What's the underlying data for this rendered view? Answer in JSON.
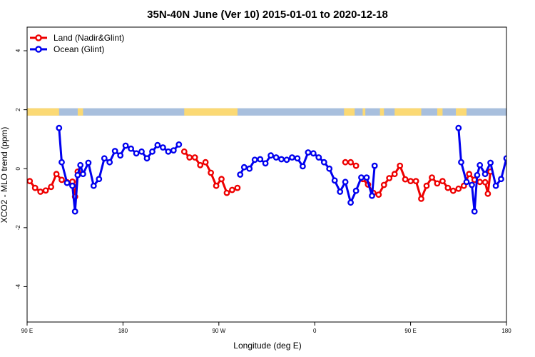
{
  "chart_data": {
    "type": "line",
    "title": "35N-40N June (Ver 10)   2015-01-01 to 2020-12-18",
    "xlabel": "Longitude (deg E)",
    "ylabel": "XCO2 - MLO trend (ppm)",
    "xlim": [
      90,
      450
    ],
    "ylim": [
      -5.2,
      4.8
    ],
    "x_ticks": [
      90,
      162,
      234,
      306,
      378,
      450
    ],
    "x_tick_labels": [
      "90 E",
      "180",
      "90 W",
      "0",
      "90 E",
      "180"
    ],
    "y_ticks": [
      -4,
      -2,
      0,
      2,
      4
    ],
    "y_tick_labels": [
      "-4",
      "-2",
      "0",
      "2",
      "4"
    ],
    "legend_position": "top-left",
    "land_ocean_strip": {
      "y_range": [
        1.8,
        2.05
      ],
      "land_color": "#fbd974",
      "ocean_color": "#a8bfdd",
      "land_segments": [
        [
          90,
          114
        ],
        [
          128,
          132
        ],
        [
          208,
          248
        ],
        [
          328,
          336
        ],
        [
          342,
          344
        ],
        [
          355,
          358
        ],
        [
          366,
          386
        ],
        [
          398,
          402
        ],
        [
          412,
          420
        ]
      ]
    },
    "series": [
      {
        "name": "Land (Nadir&Glint)",
        "color": "#ee0000",
        "segments": [
          [
            [
              92,
              -0.42
            ],
            [
              96,
              -0.65
            ],
            [
              100,
              -0.78
            ],
            [
              104,
              -0.74
            ],
            [
              108,
              -0.62
            ],
            [
              112,
              -0.18
            ],
            [
              116,
              -0.38
            ],
            [
              120,
              -0.46
            ],
            [
              124,
              -0.44
            ],
            [
              126,
              -0.95
            ],
            [
              128,
              -0.1
            ]
          ],
          [
            [
              208,
              0.58
            ],
            [
              212,
              0.38
            ],
            [
              216,
              0.38
            ],
            [
              220,
              0.12
            ],
            [
              224,
              0.22
            ],
            [
              228,
              -0.14
            ],
            [
              232,
              -0.58
            ],
            [
              236,
              -0.35
            ],
            [
              240,
              -0.82
            ],
            [
              244,
              -0.72
            ],
            [
              248,
              -0.65
            ]
          ],
          [
            [
              329,
              0.22
            ],
            [
              333,
              0.22
            ],
            [
              337,
              0.1
            ]
          ],
          [
            [
              342,
              -0.35
            ],
            [
              346,
              -0.54
            ],
            [
              350,
              -0.82
            ],
            [
              354,
              -0.88
            ],
            [
              358,
              -0.55
            ],
            [
              362,
              -0.32
            ],
            [
              366,
              -0.18
            ],
            [
              370,
              0.1
            ],
            [
              374,
              -0.36
            ],
            [
              378,
              -0.42
            ],
            [
              382,
              -0.42
            ],
            [
              386,
              -1.02
            ],
            [
              390,
              -0.58
            ],
            [
              394,
              -0.3
            ],
            [
              398,
              -0.5
            ],
            [
              402,
              -0.42
            ],
            [
              406,
              -0.65
            ],
            [
              410,
              -0.75
            ],
            [
              414,
              -0.68
            ],
            [
              418,
              -0.58
            ],
            [
              422,
              -0.18
            ],
            [
              426,
              -0.38
            ],
            [
              430,
              -0.45
            ],
            [
              434,
              -0.46
            ],
            [
              436,
              -0.85
            ],
            [
              438,
              -0.1
            ]
          ]
        ]
      },
      {
        "name": "Ocean (Glint)",
        "color": "#0000ee",
        "segments": [
          [
            [
              114,
              1.38
            ],
            [
              116,
              0.22
            ],
            [
              120,
              -0.48
            ],
            [
              124,
              -0.58
            ],
            [
              126,
              -1.45
            ],
            [
              128,
              -0.22
            ],
            [
              130,
              0.12
            ],
            [
              132,
              -0.18
            ],
            [
              136,
              0.2
            ],
            [
              140,
              -0.58
            ],
            [
              144,
              -0.35
            ],
            [
              148,
              0.35
            ],
            [
              152,
              0.22
            ],
            [
              156,
              0.6
            ],
            [
              160,
              0.45
            ],
            [
              164,
              0.78
            ],
            [
              168,
              0.68
            ],
            [
              172,
              0.52
            ],
            [
              176,
              0.58
            ],
            [
              180,
              0.35
            ],
            [
              184,
              0.58
            ],
            [
              188,
              0.8
            ],
            [
              192,
              0.72
            ],
            [
              196,
              0.58
            ],
            [
              200,
              0.62
            ],
            [
              204,
              0.82
            ]
          ],
          [
            [
              250,
              -0.2
            ],
            [
              253,
              0.05
            ],
            [
              257,
              0.0
            ],
            [
              261,
              0.3
            ],
            [
              265,
              0.32
            ],
            [
              269,
              0.18
            ],
            [
              273,
              0.45
            ],
            [
              277,
              0.38
            ],
            [
              281,
              0.32
            ],
            [
              285,
              0.3
            ],
            [
              289,
              0.38
            ],
            [
              293,
              0.35
            ],
            [
              297,
              0.08
            ],
            [
              301,
              0.55
            ],
            [
              305,
              0.52
            ],
            [
              309,
              0.38
            ],
            [
              313,
              0.22
            ],
            [
              317,
              0.0
            ],
            [
              321,
              -0.4
            ],
            [
              325,
              -0.78
            ],
            [
              329,
              -0.45
            ],
            [
              333,
              -1.15
            ],
            [
              337,
              -0.75
            ],
            [
              341,
              -0.3
            ],
            [
              345,
              -0.3
            ],
            [
              349,
              -0.92
            ],
            [
              351,
              0.1
            ]
          ],
          [
            [
              414,
              1.38
            ],
            [
              416,
              0.22
            ],
            [
              420,
              -0.45
            ],
            [
              424,
              -0.55
            ],
            [
              426,
              -1.45
            ],
            [
              428,
              -0.22
            ],
            [
              430,
              0.12
            ],
            [
              434,
              -0.18
            ],
            [
              438,
              0.2
            ],
            [
              442,
              -0.58
            ],
            [
              446,
              -0.35
            ],
            [
              450,
              0.35
            ],
            [
              454,
              0.22
            ],
            [
              458,
              0.6
            ]
          ]
        ]
      }
    ]
  }
}
